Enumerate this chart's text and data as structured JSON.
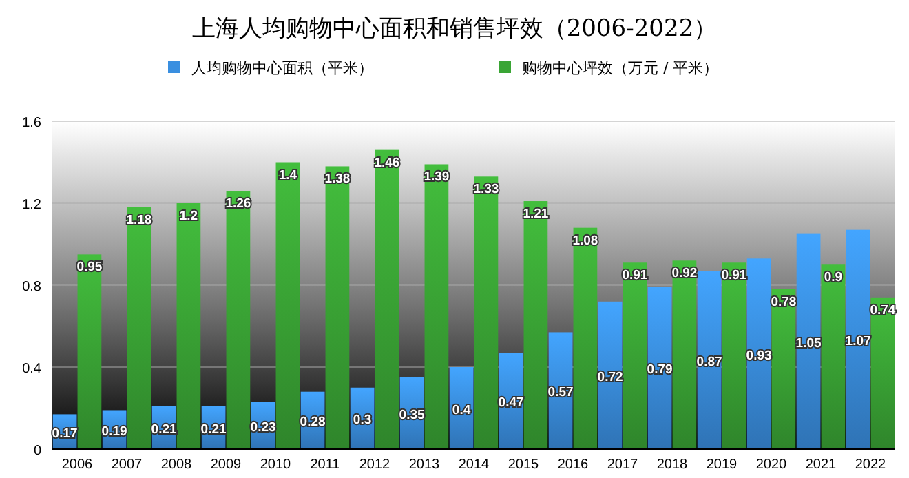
{
  "chart_data": {
    "type": "bar",
    "title": "上海人均购物中心面积和销售坪效（2006-2022）",
    "categories": [
      "2006",
      "2007",
      "2008",
      "2009",
      "2010",
      "2011",
      "2012",
      "2013",
      "2014",
      "2015",
      "2016",
      "2017",
      "2018",
      "2019",
      "2020",
      "2021",
      "2022"
    ],
    "series": [
      {
        "name": "人均购物中心面积（平米）",
        "color": "#3a8fe0",
        "values": [
          0.17,
          0.19,
          0.21,
          0.21,
          0.23,
          0.28,
          0.3,
          0.35,
          0.4,
          0.47,
          0.57,
          0.72,
          0.79,
          0.87,
          0.93,
          1.05,
          1.07
        ]
      },
      {
        "name": "购物中心坪效（万元 / 平米）",
        "color": "#3aa535",
        "values": [
          0.95,
          1.18,
          1.2,
          1.26,
          1.4,
          1.38,
          1.46,
          1.39,
          1.33,
          1.21,
          1.08,
          0.91,
          0.92,
          0.91,
          0.78,
          0.9,
          0.74
        ]
      }
    ],
    "ylim": [
      0,
      1.6
    ],
    "yticks": [
      0,
      0.4,
      0.8,
      1.2,
      1.6
    ],
    "grid": "y",
    "legend": "top",
    "data_labels": true
  }
}
